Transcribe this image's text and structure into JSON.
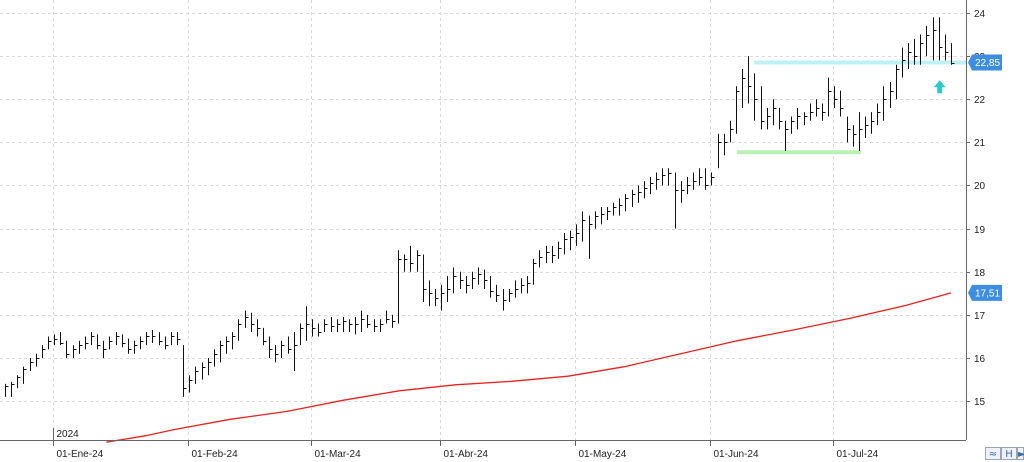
{
  "chart_data": {
    "type": "ohlc",
    "year_label": "2024",
    "x_tick_labels": [
      "01-Ene-24",
      "01-Feb-24",
      "01-Mar-24",
      "01-Abr-24",
      "01-May-24",
      "01-Jun-24",
      "01-Jul-24"
    ],
    "y_tick_labels": [
      "15",
      "16",
      "17",
      "18",
      "19",
      "20",
      "21",
      "22",
      "23",
      "24"
    ],
    "ylim": [
      14.1,
      24.3
    ],
    "grid": true,
    "last_price": {
      "label": "22,85",
      "value": 22.85,
      "color": "#3d8ee0"
    },
    "ma_last": {
      "label": "17,51",
      "value": 17.51,
      "color": "#3d8ee0"
    },
    "ma_line": {
      "color": "#e8221c",
      "points": [
        [
          18,
          14.05
        ],
        [
          25,
          14.2
        ],
        [
          30,
          14.34
        ],
        [
          40,
          14.58
        ],
        [
          50,
          14.76
        ],
        [
          60,
          15.02
        ],
        [
          70,
          15.24
        ],
        [
          80,
          15.38
        ],
        [
          90,
          15.46
        ],
        [
          100,
          15.58
        ],
        [
          110,
          15.8
        ],
        [
          120,
          16.1
        ],
        [
          130,
          16.4
        ],
        [
          140,
          16.65
        ],
        [
          150,
          16.92
        ],
        [
          160,
          17.22
        ],
        [
          168,
          17.51
        ]
      ]
    },
    "support_line": {
      "x_start": 130,
      "x_end": 152,
      "value": 20.77,
      "color": "#b8f2b2"
    },
    "resistance_line": {
      "x_start": 133,
      "x_end": 169,
      "value": 22.85,
      "color": "#bff0f4"
    },
    "signal_arrow": {
      "x": 166,
      "value": 22.3,
      "direction": "up",
      "color": "#2fc8c8"
    },
    "ohlc": [
      [
        0,
        15.4,
        15.1,
        15.35
      ],
      [
        1,
        15.45,
        15.1,
        15.4
      ],
      [
        2,
        15.6,
        15.3,
        15.55
      ],
      [
        3,
        15.8,
        15.4,
        15.75
      ],
      [
        4,
        16.0,
        15.7,
        15.9
      ],
      [
        5,
        16.1,
        15.8,
        16.0
      ],
      [
        6,
        16.3,
        16.0,
        16.2
      ],
      [
        7,
        16.5,
        16.2,
        16.4
      ],
      [
        8,
        16.55,
        16.3,
        16.45
      ],
      [
        9,
        16.6,
        16.3,
        16.35
      ],
      [
        10,
        16.4,
        16.0,
        16.1
      ],
      [
        11,
        16.3,
        16.0,
        16.2
      ],
      [
        12,
        16.4,
        16.1,
        16.3
      ],
      [
        13,
        16.5,
        16.2,
        16.35
      ],
      [
        14,
        16.6,
        16.3,
        16.5
      ],
      [
        15,
        16.55,
        16.2,
        16.3
      ],
      [
        16,
        16.4,
        16.0,
        16.2
      ],
      [
        17,
        16.5,
        16.2,
        16.4
      ],
      [
        18,
        16.6,
        16.3,
        16.5
      ],
      [
        19,
        16.55,
        16.25,
        16.35
      ],
      [
        20,
        16.45,
        16.1,
        16.2
      ],
      [
        21,
        16.4,
        16.1,
        16.3
      ],
      [
        22,
        16.5,
        16.2,
        16.4
      ],
      [
        23,
        16.6,
        16.3,
        16.5
      ],
      [
        24,
        16.65,
        16.35,
        16.5
      ],
      [
        25,
        16.6,
        16.3,
        16.4
      ],
      [
        26,
        16.5,
        16.2,
        16.3
      ],
      [
        27,
        16.6,
        16.3,
        16.5
      ],
      [
        28,
        16.6,
        16.3,
        16.45
      ],
      [
        29,
        16.3,
        15.1,
        15.3
      ],
      [
        30,
        15.6,
        15.2,
        15.5
      ],
      [
        31,
        15.8,
        15.4,
        15.7
      ],
      [
        32,
        15.9,
        15.5,
        15.8
      ],
      [
        33,
        16.0,
        15.6,
        15.9
      ],
      [
        34,
        16.2,
        15.8,
        16.1
      ],
      [
        35,
        16.4,
        15.9,
        16.3
      ],
      [
        36,
        16.5,
        16.1,
        16.4
      ],
      [
        37,
        16.6,
        16.2,
        16.5
      ],
      [
        38,
        16.9,
        16.4,
        16.8
      ],
      [
        39,
        17.1,
        16.7,
        16.95
      ],
      [
        40,
        17.05,
        16.6,
        16.8
      ],
      [
        41,
        16.9,
        16.5,
        16.7
      ],
      [
        42,
        16.7,
        16.3,
        16.4
      ],
      [
        43,
        16.5,
        16.0,
        16.2
      ],
      [
        44,
        16.3,
        15.9,
        16.1
      ],
      [
        45,
        16.4,
        16.0,
        16.3
      ],
      [
        46,
        16.5,
        16.1,
        16.2
      ],
      [
        47,
        16.6,
        15.7,
        16.3
      ],
      [
        48,
        16.8,
        16.3,
        16.7
      ],
      [
        49,
        17.2,
        16.4,
        16.8
      ],
      [
        50,
        16.9,
        16.5,
        16.7
      ],
      [
        51,
        16.8,
        16.5,
        16.6
      ],
      [
        52,
        16.9,
        16.6,
        16.8
      ],
      [
        53,
        16.95,
        16.6,
        16.75
      ],
      [
        54,
        16.9,
        16.6,
        16.8
      ],
      [
        55,
        16.95,
        16.6,
        16.85
      ],
      [
        56,
        16.9,
        16.6,
        16.8
      ],
      [
        57,
        16.95,
        16.55,
        16.8
      ],
      [
        58,
        17.1,
        16.6,
        16.9
      ],
      [
        59,
        17.0,
        16.7,
        16.8
      ],
      [
        60,
        16.9,
        16.6,
        16.75
      ],
      [
        61,
        16.9,
        16.6,
        16.8
      ],
      [
        62,
        17.1,
        16.8,
        16.9
      ],
      [
        63,
        17.0,
        16.7,
        16.85
      ],
      [
        64,
        18.5,
        16.8,
        18.3
      ],
      [
        65,
        18.4,
        18.0,
        18.3
      ],
      [
        66,
        18.6,
        18.0,
        18.2
      ],
      [
        67,
        18.5,
        18.0,
        18.4
      ],
      [
        68,
        18.4,
        17.3,
        17.6
      ],
      [
        69,
        17.8,
        17.2,
        17.5
      ],
      [
        70,
        17.6,
        17.2,
        17.4
      ],
      [
        71,
        17.7,
        17.1,
        17.5
      ],
      [
        72,
        17.9,
        17.3,
        17.6
      ],
      [
        73,
        18.1,
        17.5,
        17.9
      ],
      [
        74,
        18.0,
        17.6,
        17.8
      ],
      [
        75,
        17.9,
        17.5,
        17.7
      ],
      [
        76,
        18.0,
        17.6,
        17.85
      ],
      [
        77,
        18.1,
        17.7,
        17.95
      ],
      [
        78,
        18.05,
        17.6,
        17.8
      ],
      [
        79,
        17.9,
        17.4,
        17.55
      ],
      [
        80,
        17.7,
        17.3,
        17.45
      ],
      [
        81,
        17.6,
        17.1,
        17.35
      ],
      [
        82,
        17.6,
        17.3,
        17.5
      ],
      [
        83,
        17.8,
        17.4,
        17.6
      ],
      [
        84,
        17.85,
        17.5,
        17.7
      ],
      [
        85,
        17.9,
        17.5,
        17.75
      ],
      [
        86,
        18.3,
        17.7,
        18.2
      ],
      [
        87,
        18.5,
        18.1,
        18.35
      ],
      [
        88,
        18.6,
        18.2,
        18.45
      ],
      [
        89,
        18.6,
        18.2,
        18.4
      ],
      [
        90,
        18.7,
        18.3,
        18.55
      ],
      [
        91,
        18.9,
        18.4,
        18.75
      ],
      [
        92,
        18.95,
        18.5,
        18.8
      ],
      [
        93,
        19.1,
        18.6,
        18.9
      ],
      [
        94,
        19.4,
        18.7,
        19.2
      ],
      [
        95,
        19.3,
        18.3,
        19.1
      ],
      [
        96,
        19.4,
        19.0,
        19.3
      ],
      [
        97,
        19.5,
        19.1,
        19.35
      ],
      [
        98,
        19.5,
        19.2,
        19.4
      ],
      [
        99,
        19.6,
        19.3,
        19.5
      ],
      [
        100,
        19.7,
        19.3,
        19.55
      ],
      [
        101,
        19.8,
        19.4,
        19.7
      ],
      [
        102,
        19.9,
        19.5,
        19.8
      ],
      [
        103,
        20.0,
        19.6,
        19.85
      ],
      [
        104,
        20.1,
        19.7,
        19.95
      ],
      [
        105,
        20.2,
        19.8,
        20.05
      ],
      [
        106,
        20.3,
        19.9,
        20.15
      ],
      [
        107,
        20.4,
        20.0,
        20.25
      ],
      [
        108,
        20.4,
        20.0,
        20.3
      ],
      [
        109,
        20.3,
        19.0,
        19.9
      ],
      [
        110,
        20.1,
        19.6,
        19.9
      ],
      [
        111,
        20.2,
        19.8,
        20.0
      ],
      [
        112,
        20.3,
        19.9,
        20.1
      ],
      [
        113,
        20.4,
        20.0,
        20.2
      ],
      [
        114,
        20.4,
        19.9,
        20.0
      ],
      [
        115,
        20.3,
        20.0,
        20.2
      ],
      [
        116,
        21.2,
        20.4,
        21.0
      ],
      [
        117,
        21.2,
        20.7,
        21.0
      ],
      [
        118,
        21.5,
        21.0,
        21.3
      ],
      [
        119,
        22.3,
        21.2,
        22.2
      ],
      [
        120,
        22.7,
        21.8,
        22.5
      ],
      [
        121,
        23.0,
        21.9,
        22.3
      ],
      [
        122,
        22.6,
        21.5,
        22.0
      ],
      [
        123,
        22.3,
        21.3,
        21.5
      ],
      [
        124,
        21.8,
        21.3,
        21.6
      ],
      [
        125,
        22.0,
        21.4,
        21.8
      ],
      [
        126,
        21.8,
        21.3,
        21.5
      ],
      [
        127,
        21.5,
        20.8,
        21.3
      ],
      [
        128,
        21.6,
        21.2,
        21.5
      ],
      [
        129,
        21.8,
        21.3,
        21.6
      ],
      [
        130,
        21.7,
        21.4,
        21.6
      ],
      [
        131,
        21.9,
        21.5,
        21.7
      ],
      [
        132,
        22.0,
        21.6,
        21.8
      ],
      [
        133,
        21.9,
        21.5,
        21.7
      ],
      [
        134,
        22.5,
        21.6,
        22.2
      ],
      [
        135,
        22.3,
        21.8,
        22.0
      ],
      [
        136,
        22.2,
        21.6,
        21.8
      ],
      [
        137,
        21.6,
        21.0,
        21.3
      ],
      [
        138,
        21.4,
        20.9,
        21.2
      ],
      [
        139,
        21.7,
        20.8,
        21.3
      ],
      [
        140,
        21.6,
        21.1,
        21.4
      ],
      [
        141,
        21.7,
        21.2,
        21.5
      ],
      [
        142,
        21.9,
        21.4,
        21.7
      ],
      [
        143,
        22.3,
        21.5,
        22.0
      ],
      [
        144,
        22.4,
        21.8,
        22.2
      ],
      [
        145,
        22.8,
        22.0,
        22.7
      ],
      [
        146,
        23.2,
        22.5,
        22.9
      ],
      [
        147,
        23.3,
        22.7,
        23.1
      ],
      [
        148,
        23.4,
        22.8,
        23.0
      ],
      [
        149,
        23.5,
        22.8,
        23.3
      ],
      [
        150,
        23.7,
        23.0,
        23.5
      ],
      [
        151,
        23.9,
        22.9,
        23.6
      ],
      [
        152,
        23.9,
        22.9,
        23.2
      ],
      [
        153,
        23.5,
        22.9,
        23.1
      ],
      [
        154,
        23.3,
        22.8,
        22.85
      ]
    ],
    "x_ticks_at_bar": [
      0,
      22,
      42,
      63,
      85,
      107,
      127
    ],
    "year_label_at_bar": 0,
    "bar_count": 155
  },
  "toolbar": {
    "btn1": "≈",
    "btn2": "H",
    "btn3": "►"
  }
}
